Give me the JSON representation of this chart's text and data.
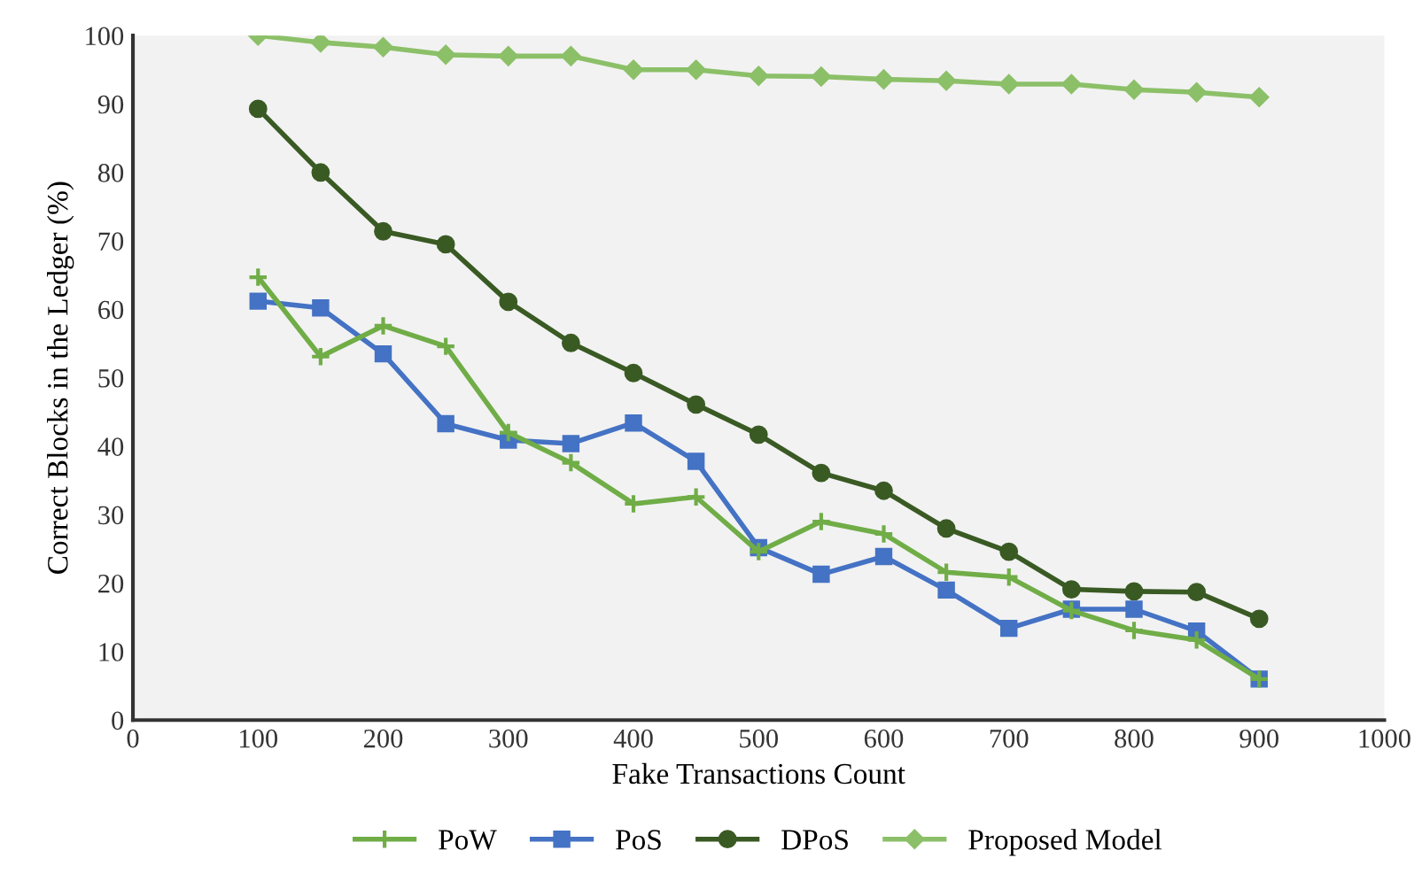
{
  "chart_data": {
    "type": "line",
    "xlabel": "Fake Transactions Count",
    "ylabel": "Correct Blocks in the Ledger (%)",
    "x": [
      100,
      150,
      200,
      250,
      300,
      350,
      400,
      450,
      500,
      550,
      600,
      650,
      700,
      750,
      800,
      850,
      900
    ],
    "series": [
      {
        "name": "PoW",
        "color": "#70ad47",
        "marker": "cross",
        "values": [
          64.7,
          53.1,
          57.6,
          54.6,
          42,
          37.6,
          31.6,
          32.6,
          24.6,
          29.0,
          27.2,
          21.6,
          20.9,
          16.0,
          13.1,
          11.7,
          6.0
        ]
      },
      {
        "name": "PoS",
        "color": "#4472c4",
        "marker": "square",
        "values": [
          61.2,
          60.2,
          53.5,
          43.3,
          40.9,
          40.4,
          43.4,
          37.8,
          25.2,
          21.3,
          23.9,
          19.0,
          13.4,
          16.2,
          16.2,
          13.0,
          6.0
        ]
      },
      {
        "name": "DPoS",
        "color": "#3a5a24",
        "marker": "circle",
        "values": [
          89.3,
          80,
          71.4,
          69.5,
          61.1,
          55.1,
          50.7,
          46.1,
          41.7,
          36.1,
          33.5,
          28.0,
          24.6,
          19.1,
          18.8,
          18.7,
          14.8
        ]
      },
      {
        "name": "Proposed Model",
        "color": "#8cc068",
        "marker": "diamond",
        "values": [
          100,
          99,
          98.3,
          97.2,
          97,
          97,
          95,
          95,
          94.1,
          94,
          93.6,
          93.4,
          92.9,
          92.9,
          92.1,
          91.7,
          91
        ]
      }
    ],
    "xlim": [
      0,
      1000
    ],
    "xticks": [
      0,
      100,
      200,
      300,
      400,
      500,
      600,
      700,
      800,
      900,
      1000
    ],
    "ylim": [
      0,
      100
    ],
    "yticks": [
      0,
      10,
      20,
      30,
      40,
      50,
      60,
      70,
      80,
      90,
      100
    ],
    "grid": false,
    "legend": "bottom"
  }
}
